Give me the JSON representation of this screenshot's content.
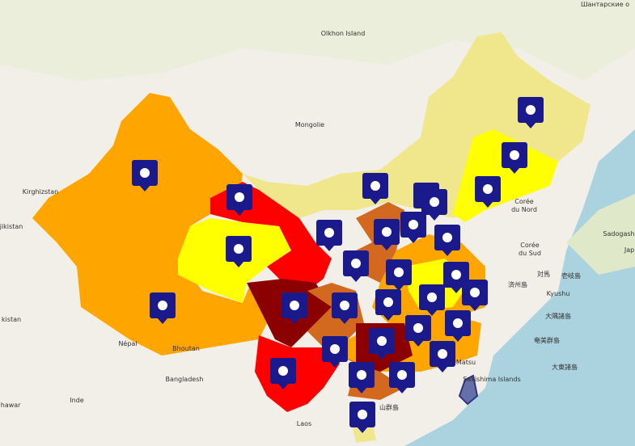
{
  "map": {
    "labels": [
      {
        "text": "Шантарские о"
      },
      {
        "text": "Olkhon Island"
      },
      {
        "text": "Mongolie"
      },
      {
        "text": "Kirghizstan"
      },
      {
        "text": "jikistan"
      },
      {
        "text": "kistan"
      },
      {
        "text": "Népal"
      },
      {
        "text": "Bhoutan"
      },
      {
        "text": "Bangladesh"
      },
      {
        "text": "Inde"
      },
      {
        "text": "ihawar"
      },
      {
        "text": "Corée"
      },
      {
        "text": "du Nord"
      },
      {
        "text": "Corée"
      },
      {
        "text": "du Sud"
      },
      {
        "text": "Sadogash"
      },
      {
        "text": "Jap"
      },
      {
        "text": "対馬"
      },
      {
        "text": "壱岐島"
      },
      {
        "text": "済州島"
      },
      {
        "text": "Kyushu"
      },
      {
        "text": "大隅諸島"
      },
      {
        "text": "奄美群島"
      },
      {
        "text": "大東諸島"
      },
      {
        "text": "Matsu"
      },
      {
        "text": "Sakishima Islands"
      },
      {
        "text": "Laos"
      },
      {
        "text": "山群島"
      }
    ]
  }
}
